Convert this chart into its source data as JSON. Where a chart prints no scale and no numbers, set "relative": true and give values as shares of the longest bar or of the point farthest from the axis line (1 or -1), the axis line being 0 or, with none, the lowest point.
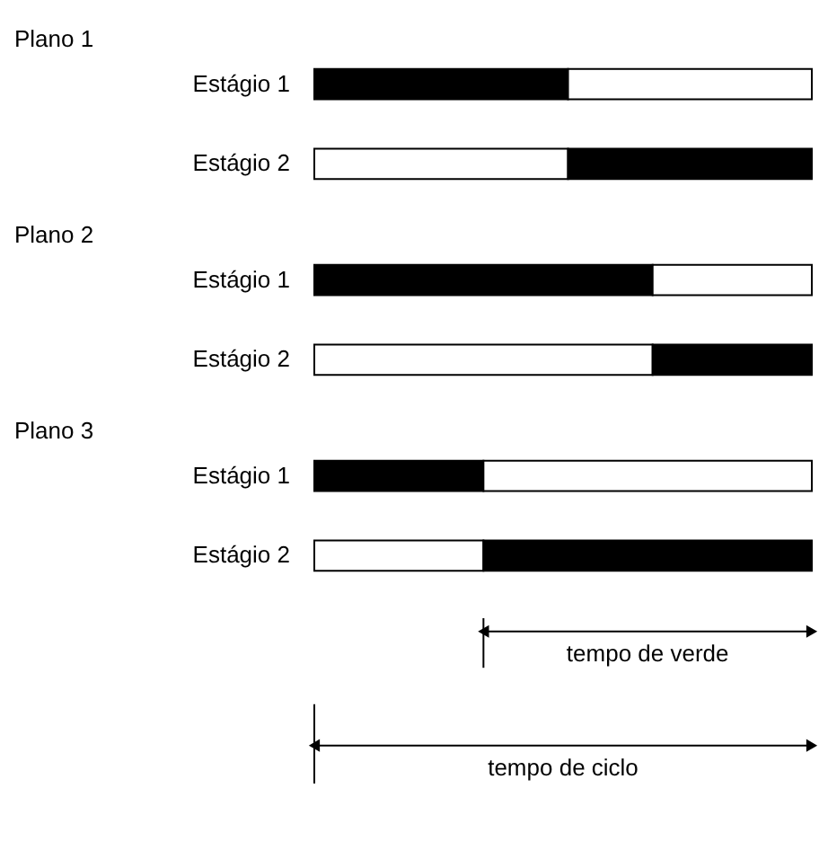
{
  "chart_data": [
    {
      "type": "bar",
      "orientation": "horizontal",
      "stacked": true,
      "relative": true,
      "title": "Plano 1",
      "categories": [
        "Estágio 1",
        "Estágio 2"
      ],
      "series": [
        {
          "colors": [
            "#000000",
            "#ffffff"
          ],
          "values": [
            0.51,
            0.51
          ]
        },
        {
          "colors": [
            "#ffffff",
            "#000000"
          ],
          "values": [
            0.49,
            0.49
          ]
        }
      ]
    },
    {
      "type": "bar",
      "orientation": "horizontal",
      "stacked": true,
      "relative": true,
      "title": "Plano 2",
      "categories": [
        "Estágio 1",
        "Estágio 2"
      ],
      "series": [
        {
          "colors": [
            "#000000",
            "#ffffff"
          ],
          "values": [
            0.68,
            0.68
          ]
        },
        {
          "colors": [
            "#ffffff",
            "#000000"
          ],
          "values": [
            0.32,
            0.32
          ]
        }
      ]
    },
    {
      "type": "bar",
      "orientation": "horizontal",
      "stacked": true,
      "relative": true,
      "title": "Plano 3",
      "categories": [
        "Estágio 1",
        "Estágio 2"
      ],
      "series": [
        {
          "colors": [
            "#000000",
            "#ffffff"
          ],
          "values": [
            0.34,
            0.34
          ]
        },
        {
          "colors": [
            "#ffffff",
            "#000000"
          ],
          "values": [
            0.66,
            0.66
          ]
        }
      ],
      "annotations": [
        "tempo de verde",
        "tempo de ciclo"
      ]
    }
  ]
}
